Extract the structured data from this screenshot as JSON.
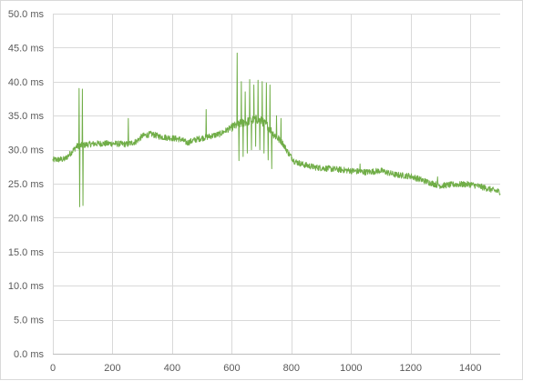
{
  "chart_data": {
    "type": "line",
    "title": "",
    "xlabel": "",
    "ylabel": "",
    "xlim": [
      0,
      1500
    ],
    "ylim": [
      0,
      50
    ],
    "x_ticks": [
      0,
      200,
      400,
      600,
      800,
      1000,
      1200,
      1400
    ],
    "x_tick_labels": [
      "0",
      "200",
      "400",
      "600",
      "800",
      "1000",
      "1200",
      "1400"
    ],
    "y_ticks": [
      0,
      5,
      10,
      15,
      20,
      25,
      30,
      35,
      40,
      45,
      50
    ],
    "y_tick_labels": [
      "0.0 ms",
      "5.0 ms",
      "10.0 ms",
      "15.0 ms",
      "20.0 ms",
      "25.0 ms",
      "30.0 ms",
      "35.0 ms",
      "40.0 ms",
      "45.0 ms",
      "50.0 ms"
    ],
    "grid": true,
    "legend": "none",
    "series": [
      {
        "color": "#70ad47",
        "baseline": [
          [
            0,
            28.5
          ],
          [
            40,
            28.6
          ],
          [
            60,
            29.5
          ],
          [
            80,
            30.5
          ],
          [
            120,
            30.8
          ],
          [
            150,
            30.9
          ],
          [
            200,
            30.9
          ],
          [
            250,
            30.8
          ],
          [
            280,
            31.2
          ],
          [
            300,
            32.0
          ],
          [
            330,
            32.3
          ],
          [
            360,
            31.9
          ],
          [
            400,
            31.7
          ],
          [
            430,
            31.5
          ],
          [
            450,
            31.0
          ],
          [
            480,
            31.5
          ],
          [
            520,
            31.9
          ],
          [
            560,
            32.3
          ],
          [
            600,
            33.3
          ],
          [
            640,
            34.0
          ],
          [
            680,
            34.5
          ],
          [
            700,
            34.2
          ],
          [
            720,
            33.5
          ],
          [
            740,
            32.3
          ],
          [
            770,
            31.0
          ],
          [
            790,
            29.5
          ],
          [
            810,
            28.3
          ],
          [
            840,
            27.8
          ],
          [
            880,
            27.4
          ],
          [
            1000,
            26.9
          ],
          [
            1050,
            26.7
          ],
          [
            1100,
            26.9
          ],
          [
            1150,
            26.3
          ],
          [
            1200,
            26.1
          ],
          [
            1260,
            25.2
          ],
          [
            1300,
            24.7
          ],
          [
            1350,
            24.9
          ],
          [
            1400,
            24.9
          ],
          [
            1440,
            24.5
          ],
          [
            1480,
            24.0
          ],
          [
            1500,
            23.8
          ]
        ],
        "spikes": [
          [
            88,
            39.0
          ],
          [
            90,
            21.6
          ],
          [
            99,
            38.9
          ],
          [
            101,
            21.8
          ],
          [
            253,
            34.6
          ],
          [
            514,
            35.9
          ],
          [
            618,
            44.2
          ],
          [
            624,
            28.4
          ],
          [
            632,
            40.0
          ],
          [
            638,
            29.0
          ],
          [
            645,
            38.5
          ],
          [
            652,
            29.5
          ],
          [
            660,
            40.3
          ],
          [
            666,
            30.0
          ],
          [
            674,
            39.5
          ],
          [
            680,
            30.5
          ],
          [
            688,
            40.2
          ],
          [
            694,
            30.0
          ],
          [
            702,
            40.0
          ],
          [
            708,
            29.5
          ],
          [
            716,
            39.8
          ],
          [
            722,
            28.5
          ],
          [
            728,
            39.5
          ],
          [
            734,
            27.2
          ],
          [
            750,
            35.0
          ],
          [
            765,
            34.6
          ],
          [
            1030,
            27.9
          ],
          [
            1290,
            26.0
          ]
        ]
      }
    ]
  }
}
